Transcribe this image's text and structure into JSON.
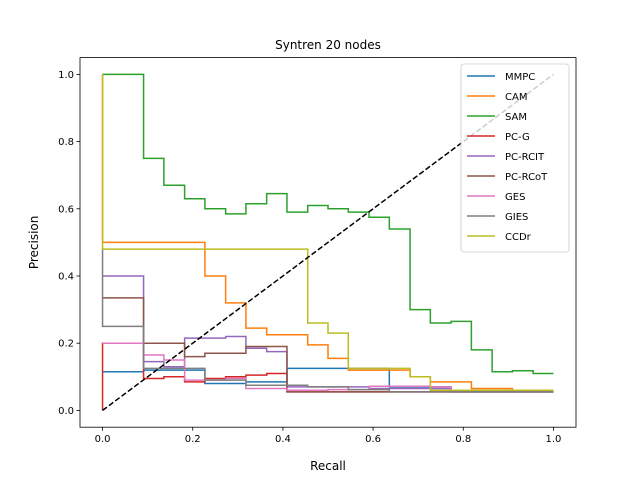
{
  "chart_data": {
    "type": "line",
    "title": "Syntren 20 nodes",
    "xlabel": "Recall",
    "ylabel": "Precision",
    "xlim": [
      -0.05,
      1.05
    ],
    "ylim": [
      -0.05,
      1.05
    ],
    "xticks": [
      "0.0",
      "0.2",
      "0.4",
      "0.6",
      "0.8",
      "1.0"
    ],
    "yticks": [
      "0.0",
      "0.2",
      "0.4",
      "0.6",
      "0.8",
      "1.0"
    ],
    "grid": false,
    "legend_position": "top-right",
    "series": [
      {
        "name": "MMPC",
        "color": "#1f77b4",
        "step": true,
        "points": [
          [
            0,
            0.115
          ],
          [
            0.091,
            0.115
          ],
          [
            0.091,
            0.12
          ],
          [
            0.227,
            0.12
          ],
          [
            0.227,
            0.08
          ],
          [
            0.318,
            0.08
          ],
          [
            0.318,
            0.085
          ],
          [
            0.409,
            0.085
          ],
          [
            0.409,
            0.125
          ],
          [
            0.636,
            0.125
          ],
          [
            0.636,
            0.07
          ],
          [
            0.773,
            0.07
          ],
          [
            0.773,
            0.055
          ],
          [
            1.0,
            0.055
          ]
        ]
      },
      {
        "name": "CAM",
        "color": "#ff7f0e",
        "step": true,
        "points": [
          [
            0,
            1.0
          ],
          [
            0,
            0.5
          ],
          [
            0.227,
            0.5
          ],
          [
            0.227,
            0.4
          ],
          [
            0.273,
            0.4
          ],
          [
            0.273,
            0.32
          ],
          [
            0.318,
            0.32
          ],
          [
            0.318,
            0.245
          ],
          [
            0.364,
            0.245
          ],
          [
            0.364,
            0.225
          ],
          [
            0.455,
            0.225
          ],
          [
            0.455,
            0.195
          ],
          [
            0.5,
            0.195
          ],
          [
            0.5,
            0.155
          ],
          [
            0.545,
            0.155
          ],
          [
            0.545,
            0.12
          ],
          [
            0.682,
            0.12
          ],
          [
            0.682,
            0.1
          ],
          [
            0.727,
            0.1
          ],
          [
            0.727,
            0.085
          ],
          [
            0.818,
            0.085
          ],
          [
            0.818,
            0.065
          ],
          [
            0.909,
            0.065
          ],
          [
            0.909,
            0.058
          ],
          [
            1.0,
            0.058
          ]
        ]
      },
      {
        "name": "SAM",
        "color": "#2ca02c",
        "step": true,
        "points": [
          [
            0,
            1.0
          ],
          [
            0.091,
            1.0
          ],
          [
            0.091,
            0.75
          ],
          [
            0.136,
            0.75
          ],
          [
            0.136,
            0.67
          ],
          [
            0.182,
            0.67
          ],
          [
            0.182,
            0.63
          ],
          [
            0.227,
            0.63
          ],
          [
            0.227,
            0.6
          ],
          [
            0.273,
            0.6
          ],
          [
            0.273,
            0.585
          ],
          [
            0.318,
            0.585
          ],
          [
            0.318,
            0.615
          ],
          [
            0.364,
            0.615
          ],
          [
            0.364,
            0.645
          ],
          [
            0.409,
            0.645
          ],
          [
            0.409,
            0.59
          ],
          [
            0.455,
            0.59
          ],
          [
            0.455,
            0.61
          ],
          [
            0.5,
            0.61
          ],
          [
            0.5,
            0.6
          ],
          [
            0.545,
            0.6
          ],
          [
            0.545,
            0.59
          ],
          [
            0.591,
            0.59
          ],
          [
            0.591,
            0.575
          ],
          [
            0.636,
            0.575
          ],
          [
            0.636,
            0.54
          ],
          [
            0.682,
            0.54
          ],
          [
            0.682,
            0.3
          ],
          [
            0.727,
            0.3
          ],
          [
            0.727,
            0.26
          ],
          [
            0.773,
            0.26
          ],
          [
            0.773,
            0.265
          ],
          [
            0.818,
            0.265
          ],
          [
            0.818,
            0.18
          ],
          [
            0.864,
            0.18
          ],
          [
            0.864,
            0.115
          ],
          [
            0.909,
            0.115
          ],
          [
            0.909,
            0.118
          ],
          [
            0.955,
            0.118
          ],
          [
            0.955,
            0.11
          ],
          [
            1.0,
            0.11
          ]
        ]
      },
      {
        "name": "PC-G",
        "color": "#d62728",
        "step": true,
        "points": [
          [
            0,
            0.0
          ],
          [
            0,
            0.2
          ],
          [
            0.091,
            0.2
          ],
          [
            0.091,
            0.095
          ],
          [
            0.136,
            0.095
          ],
          [
            0.136,
            0.1
          ],
          [
            0.182,
            0.1
          ],
          [
            0.182,
            0.085
          ],
          [
            0.227,
            0.085
          ],
          [
            0.227,
            0.095
          ],
          [
            0.273,
            0.095
          ],
          [
            0.273,
            0.1
          ],
          [
            0.318,
            0.1
          ],
          [
            0.318,
            0.105
          ],
          [
            0.364,
            0.105
          ],
          [
            0.364,
            0.11
          ],
          [
            0.409,
            0.11
          ],
          [
            0.409,
            0.055
          ],
          [
            1.0,
            0.055
          ]
        ]
      },
      {
        "name": "PC-RCIT",
        "color": "#9467bd",
        "step": true,
        "points": [
          [
            0,
            0.4
          ],
          [
            0.091,
            0.4
          ],
          [
            0.091,
            0.145
          ],
          [
            0.136,
            0.145
          ],
          [
            0.136,
            0.13
          ],
          [
            0.182,
            0.13
          ],
          [
            0.182,
            0.215
          ],
          [
            0.273,
            0.215
          ],
          [
            0.273,
            0.22
          ],
          [
            0.318,
            0.22
          ],
          [
            0.318,
            0.185
          ],
          [
            0.364,
            0.185
          ],
          [
            0.364,
            0.175
          ],
          [
            0.409,
            0.175
          ],
          [
            0.409,
            0.07
          ],
          [
            0.591,
            0.07
          ],
          [
            0.591,
            0.065
          ],
          [
            0.773,
            0.065
          ],
          [
            0.773,
            0.058
          ],
          [
            1.0,
            0.058
          ]
        ]
      },
      {
        "name": "PC-RCoT",
        "color": "#8c564b",
        "step": true,
        "points": [
          [
            0,
            0.335
          ],
          [
            0.091,
            0.335
          ],
          [
            0.091,
            0.2
          ],
          [
            0.182,
            0.2
          ],
          [
            0.182,
            0.16
          ],
          [
            0.227,
            0.16
          ],
          [
            0.227,
            0.17
          ],
          [
            0.318,
            0.17
          ],
          [
            0.318,
            0.19
          ],
          [
            0.409,
            0.19
          ],
          [
            0.409,
            0.055
          ],
          [
            1.0,
            0.055
          ]
        ]
      },
      {
        "name": "GES",
        "color": "#e377c2",
        "step": true,
        "points": [
          [
            0,
            0.2
          ],
          [
            0.091,
            0.2
          ],
          [
            0.091,
            0.165
          ],
          [
            0.136,
            0.165
          ],
          [
            0.136,
            0.15
          ],
          [
            0.182,
            0.15
          ],
          [
            0.182,
            0.09
          ],
          [
            0.273,
            0.09
          ],
          [
            0.273,
            0.095
          ],
          [
            0.318,
            0.095
          ],
          [
            0.318,
            0.065
          ],
          [
            0.409,
            0.065
          ],
          [
            0.409,
            0.06
          ],
          [
            0.5,
            0.06
          ],
          [
            0.5,
            0.062
          ],
          [
            0.591,
            0.062
          ],
          [
            0.591,
            0.072
          ],
          [
            0.727,
            0.072
          ],
          [
            0.727,
            0.07
          ],
          [
            0.773,
            0.07
          ],
          [
            0.773,
            0.06
          ],
          [
            1.0,
            0.06
          ]
        ]
      },
      {
        "name": "GIES",
        "color": "#7f7f7f",
        "step": true,
        "points": [
          [
            0,
            0.48
          ],
          [
            0,
            0.25
          ],
          [
            0.091,
            0.25
          ],
          [
            0.091,
            0.125
          ],
          [
            0.227,
            0.125
          ],
          [
            0.227,
            0.09
          ],
          [
            0.318,
            0.09
          ],
          [
            0.318,
            0.075
          ],
          [
            0.455,
            0.075
          ],
          [
            0.455,
            0.07
          ],
          [
            0.545,
            0.07
          ],
          [
            0.545,
            0.062
          ],
          [
            0.636,
            0.062
          ],
          [
            0.636,
            0.055
          ],
          [
            1.0,
            0.055
          ]
        ]
      },
      {
        "name": "CCDr",
        "color": "#bcbd22",
        "step": true,
        "points": [
          [
            0,
            1.0
          ],
          [
            0,
            0.48
          ],
          [
            0.455,
            0.48
          ],
          [
            0.455,
            0.26
          ],
          [
            0.5,
            0.26
          ],
          [
            0.5,
            0.23
          ],
          [
            0.545,
            0.23
          ],
          [
            0.545,
            0.125
          ],
          [
            0.682,
            0.125
          ],
          [
            0.682,
            0.1
          ],
          [
            0.727,
            0.1
          ],
          [
            0.727,
            0.06
          ],
          [
            1.0,
            0.06
          ]
        ]
      }
    ],
    "reference_line": {
      "points": [
        [
          0,
          0
        ],
        [
          1,
          1
        ]
      ],
      "color": "#000000",
      "style": "dashed"
    }
  }
}
